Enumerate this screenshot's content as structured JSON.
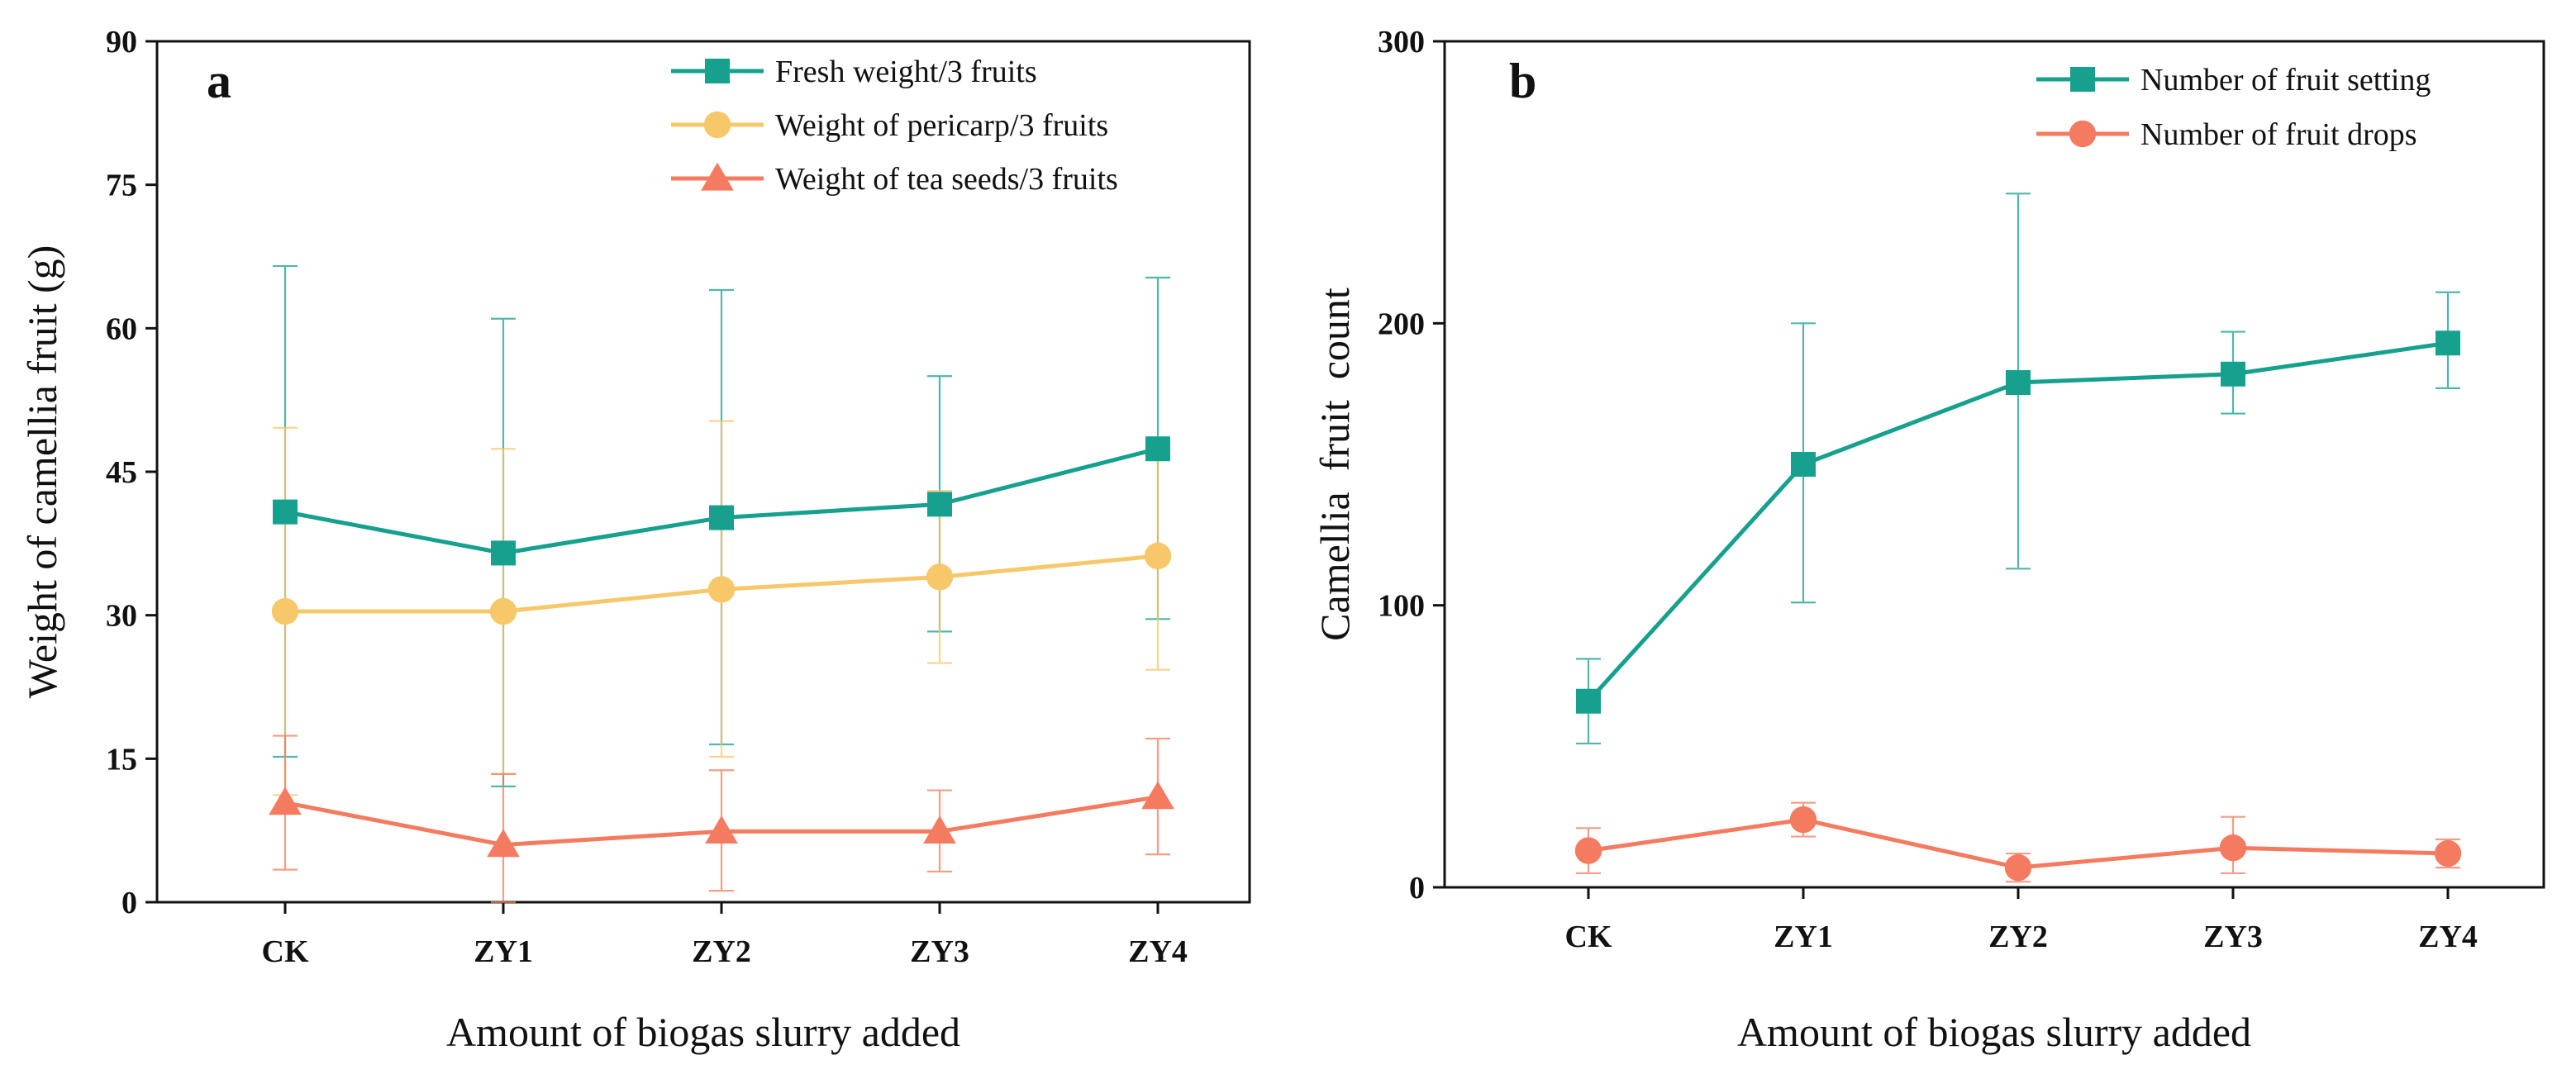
{
  "chart_data": [
    {
      "type": "line",
      "panel_label": "a",
      "xlabel": "Amount of biogas slurry added",
      "ylabel": "Weight of camellia fruit (g)",
      "categories": [
        "CK",
        "ZY1",
        "ZY2",
        "ZY3",
        "ZY4"
      ],
      "ylim": [
        0,
        90
      ],
      "yticks": [
        0,
        15,
        30,
        45,
        60,
        75,
        90
      ],
      "legend_position": "top-right",
      "grid": false,
      "series": [
        {
          "name": "Fresh weight/3 fruits",
          "marker": "square",
          "color": "#16A08E",
          "values": [
            40.8,
            36.5,
            40.2,
            41.6,
            47.4
          ],
          "error_low": [
            15.2,
            12.1,
            16.5,
            28.3,
            29.6
          ],
          "error_high": [
            66.5,
            61.0,
            64.0,
            55.0,
            65.3
          ]
        },
        {
          "name": "Weight of pericarp/3 fruits",
          "marker": "circle",
          "color": "#F6C86A",
          "values": [
            30.4,
            30.4,
            32.7,
            34.0,
            36.2
          ],
          "error_low": [
            11.2,
            13.4,
            15.2,
            25.0,
            24.3
          ],
          "error_high": [
            49.6,
            47.4,
            50.3,
            43.0,
            48.1
          ]
        },
        {
          "name": "Weight of tea seeds/3 fruits",
          "marker": "triangle",
          "color": "#F47B5F",
          "values": [
            10.4,
            6.0,
            7.4,
            7.4,
            11.0
          ],
          "error_low": [
            3.4,
            0.0,
            1.2,
            3.2,
            5.0
          ],
          "error_high": [
            17.4,
            13.4,
            13.8,
            11.7,
            17.1
          ]
        }
      ]
    },
    {
      "type": "line",
      "panel_label": "b",
      "xlabel": "Amount of biogas slurry added",
      "ylabel": "Camellia  fruit  count",
      "categories": [
        "CK",
        "ZY1",
        "ZY2",
        "ZY3",
        "ZY4"
      ],
      "ylim": [
        0,
        300
      ],
      "yticks": [
        0,
        100,
        200,
        300
      ],
      "legend_position": "top-right",
      "grid": false,
      "series": [
        {
          "name": "Number of fruit setting",
          "marker": "square",
          "color": "#16A08E",
          "values": [
            66,
            150,
            179,
            182,
            193
          ],
          "error_low": [
            51,
            101,
            113,
            168,
            177
          ],
          "error_high": [
            81,
            200,
            246,
            197,
            211
          ]
        },
        {
          "name": "Number of fruit drops",
          "marker": "circle",
          "color": "#F47B5F",
          "values": [
            13,
            24,
            7,
            14,
            12
          ],
          "error_low": [
            5,
            18,
            2,
            5,
            7
          ],
          "error_high": [
            21,
            30,
            12,
            25,
            17
          ]
        }
      ]
    }
  ]
}
